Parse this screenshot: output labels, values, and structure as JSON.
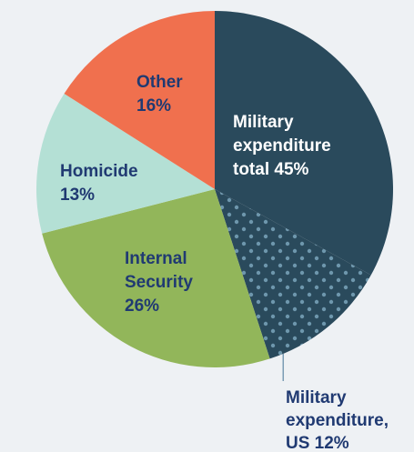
{
  "colors": {
    "background": "#eef1f4",
    "military_total": "#2a4a5c",
    "military_dots": "#6e97ad",
    "internal_security": "#92b65a",
    "homicide": "#b4e0d5",
    "other": "#f0704e",
    "label_dark": "#203a72",
    "label_light": "#ffffff",
    "leader_line": "#7a9cb4"
  },
  "chart_data": {
    "type": "pie",
    "title": "",
    "start": "12 o'clock",
    "direction": "clockwise",
    "slices": [
      {
        "key": "military",
        "value": 33,
        "lines": [
          "Military",
          "expenditure",
          "total 45%"
        ],
        "color": "#2a4a5c",
        "pattern": "none",
        "text_color": "#ffffff"
      },
      {
        "key": "military_us",
        "value": 12,
        "lines": [
          "Military",
          "expenditure,",
          "US 12%"
        ],
        "color": "#2a4a5c",
        "pattern": "dots",
        "text_color": "#203a72",
        "callout": true
      },
      {
        "key": "internal_security",
        "value": 26,
        "lines": [
          "Internal",
          "Security",
          "26%"
        ],
        "color": "#92b65a",
        "pattern": "none",
        "text_color": "#203a72"
      },
      {
        "key": "homicide",
        "value": 13,
        "lines": [
          "Homicide",
          "13%"
        ],
        "color": "#b4e0d5",
        "pattern": "none",
        "text_color": "#203a72"
      },
      {
        "key": "other",
        "value": 16,
        "lines": [
          "Other",
          "16%"
        ],
        "color": "#f0704e",
        "pattern": "none",
        "text_color": "#203a72"
      }
    ]
  }
}
